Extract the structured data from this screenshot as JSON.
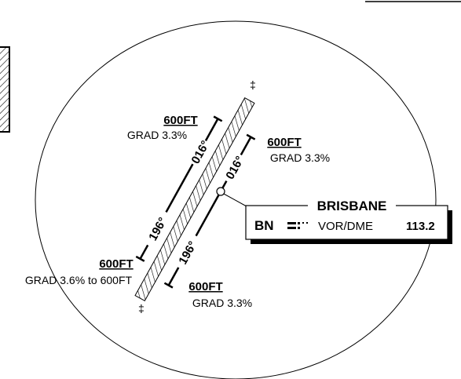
{
  "labels": [
    {
      "altitude": "600FT",
      "gradient": "GRAD 3.3%"
    },
    {
      "altitude": "600FT",
      "gradient": "GRAD 3.3%"
    },
    {
      "altitude": "600FT",
      "gradient": "GRAD 3.6% to 600FT"
    },
    {
      "altitude": "600FT",
      "gradient": "GRAD 3.3%"
    }
  ],
  "courses": {
    "outbound": "016°",
    "inbound": "196°"
  },
  "navaid": {
    "name": "BRISBANE",
    "ident": "BN",
    "type": "VOR/DME",
    "frequency": "113.2"
  }
}
